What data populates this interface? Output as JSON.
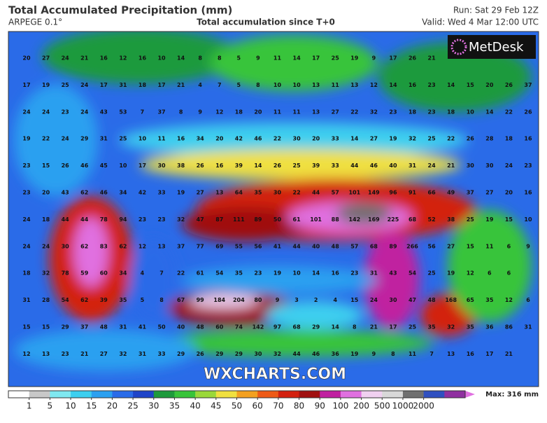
{
  "header": {
    "title": "Total Accumulated Precipitation (mm)",
    "model": "ARPEGE 0.1°",
    "subtitle": "Total accumulation since T+0",
    "run": "Run: Sat 29 Feb 12Z",
    "valid": "Valid: Wed 4 Mar 12:00 UTC"
  },
  "logo": "MetDesk",
  "watermark": "WXCHARTS.COM",
  "grid_values": [
    [
      20,
      27,
      24,
      21,
      16,
      12,
      16,
      10,
      14,
      8,
      8,
      5,
      9,
      11,
      14,
      17,
      25,
      19,
      9,
      17,
      26,
      21
    ],
    [
      17,
      19,
      25,
      24,
      17,
      31,
      18,
      17,
      21,
      4,
      7,
      5,
      8,
      10,
      10,
      13,
      11,
      13,
      12,
      14,
      16,
      23,
      14,
      15,
      20,
      26,
      37
    ],
    [
      24,
      24,
      23,
      24,
      43,
      53,
      7,
      37,
      8,
      9,
      12,
      18,
      20,
      11,
      11,
      13,
      27,
      22,
      32,
      23,
      18,
      23,
      18,
      10,
      14,
      22,
      26
    ],
    [
      19,
      22,
      24,
      29,
      31,
      25,
      10,
      11,
      16,
      34,
      20,
      42,
      46,
      22,
      30,
      20,
      33,
      14,
      27,
      19,
      32,
      25,
      22,
      26,
      28,
      18,
      16
    ],
    [
      23,
      15,
      26,
      46,
      45,
      10,
      17,
      30,
      38,
      26,
      16,
      39,
      14,
      26,
      25,
      39,
      33,
      44,
      46,
      40,
      31,
      24,
      21,
      30,
      30,
      24,
      23
    ],
    [
      23,
      20,
      43,
      62,
      46,
      34,
      42,
      33,
      19,
      27,
      13,
      64,
      35,
      30,
      22,
      44,
      57,
      101,
      149,
      96,
      91,
      66,
      49,
      37,
      27,
      20,
      16
    ],
    [
      24,
      18,
      44,
      44,
      78,
      94,
      23,
      23,
      32,
      47,
      87,
      111,
      89,
      50,
      61,
      101,
      88,
      142,
      169,
      225,
      68,
      52,
      38,
      25,
      19,
      15,
      10
    ],
    [
      24,
      24,
      30,
      62,
      83,
      62,
      12,
      13,
      37,
      77,
      69,
      55,
      56,
      41,
      44,
      40,
      48,
      57,
      68,
      89,
      266,
      56,
      27,
      15,
      11,
      6,
      9
    ],
    [
      18,
      32,
      78,
      59,
      60,
      34,
      4,
      7,
      22,
      61,
      54,
      35,
      23,
      19,
      10,
      14,
      16,
      23,
      31,
      43,
      54,
      25,
      19,
      12,
      6,
      6
    ],
    [
      31,
      28,
      54,
      62,
      39,
      35,
      5,
      8,
      67,
      99,
      184,
      204,
      80,
      9,
      3,
      2,
      4,
      15,
      24,
      30,
      47,
      48,
      168,
      65,
      35,
      12,
      6
    ],
    [
      15,
      15,
      29,
      37,
      48,
      31,
      41,
      50,
      40,
      48,
      60,
      74,
      142,
      97,
      68,
      29,
      14,
      8,
      21,
      17,
      25,
      35,
      32,
      35,
      36,
      86,
      31
    ],
    [
      12,
      13,
      23,
      21,
      27,
      32,
      31,
      33,
      29,
      26,
      29,
      29,
      30,
      32,
      44,
      46,
      36,
      19,
      9,
      8,
      11,
      7,
      13,
      16,
      17,
      21
    ]
  ],
  "colorbar": {
    "labels": [
      1,
      5,
      10,
      15,
      20,
      25,
      30,
      35,
      40,
      45,
      50,
      60,
      70,
      80,
      90,
      100,
      200,
      500,
      1000,
      2000
    ],
    "colors": [
      "#ffffff",
      "#c8c8c8",
      "#7fe8f0",
      "#3ccfef",
      "#2ba0f0",
      "#2a6be8",
      "#1f44c8",
      "#1e9a3c",
      "#38c43a",
      "#9ad83a",
      "#f0e040",
      "#f3a020",
      "#ee5a16",
      "#d3200e",
      "#a01010",
      "#c020a0",
      "#e070e0",
      "#f0d0f0",
      "#d8d8d8",
      "#707070",
      "#3050c0",
      "#9030a0"
    ],
    "max": "Max: 316 mm"
  }
}
